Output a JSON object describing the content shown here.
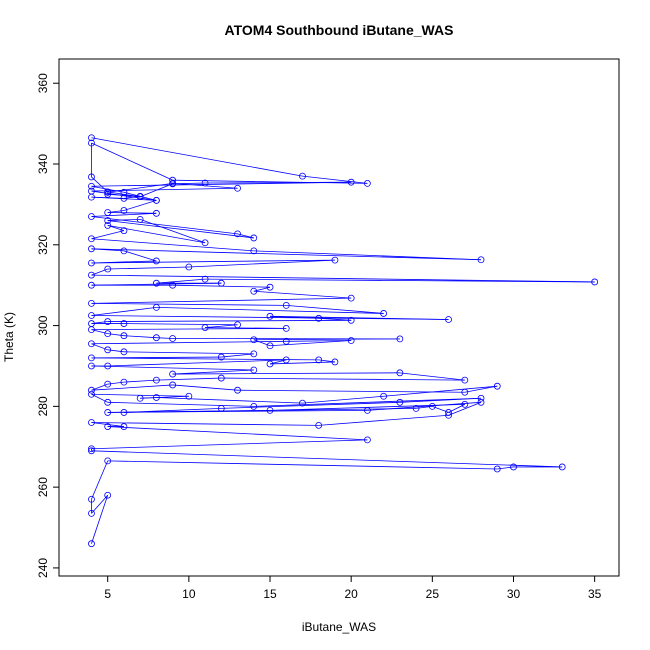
{
  "chart_data": {
    "type": "line",
    "title": "ATOM4 Southbound iButane_WAS",
    "xlabel": "iButane_WAS",
    "ylabel": "Theta (K)",
    "xlim": [
      2,
      36.5
    ],
    "ylim": [
      238,
      366
    ],
    "x_ticks": [
      5,
      10,
      15,
      20,
      25,
      30,
      35
    ],
    "y_ticks": [
      240,
      260,
      280,
      300,
      320,
      340,
      360
    ],
    "grid": false,
    "marker": "open-circle",
    "colors": {
      "series": "#0000ff",
      "axis": "#000000",
      "background": "#ffffff"
    },
    "series": [
      {
        "points": [
          [
            4,
            346.5
          ],
          [
            17,
            337
          ],
          [
            21,
            335.2
          ],
          [
            9,
            336
          ],
          [
            4,
            345.2
          ],
          [
            4,
            336.8
          ],
          [
            5,
            333.1
          ],
          [
            7,
            331.9
          ],
          [
            9,
            335.1
          ],
          [
            11,
            335.3
          ],
          [
            20,
            335.5
          ],
          [
            4,
            334.5
          ],
          [
            6,
            333
          ],
          [
            8,
            331
          ],
          [
            4,
            333.3
          ],
          [
            13,
            334
          ],
          [
            9,
            335.2
          ],
          [
            5,
            333
          ],
          [
            5,
            332.5
          ],
          [
            7,
            332
          ],
          [
            6,
            331.5
          ],
          [
            4,
            331.8
          ],
          [
            8,
            331
          ],
          [
            6,
            328.5
          ],
          [
            5,
            328
          ],
          [
            8,
            327.8
          ],
          [
            4,
            327
          ],
          [
            13,
            322.7
          ],
          [
            14,
            321.7
          ],
          [
            5,
            326
          ],
          [
            7,
            326.3
          ],
          [
            11,
            320.5
          ],
          [
            5,
            324.8
          ],
          [
            6,
            323.5
          ],
          [
            4,
            321.5
          ],
          [
            14,
            318.5
          ],
          [
            28,
            316.3
          ],
          [
            4,
            319
          ],
          [
            6,
            318.5
          ],
          [
            8,
            316
          ],
          [
            4,
            315.5
          ],
          [
            19,
            316.2
          ],
          [
            10,
            314.5
          ],
          [
            5,
            314
          ],
          [
            4,
            312.5
          ],
          [
            35,
            310.8
          ],
          [
            11,
            311.5
          ],
          [
            8,
            310.5
          ],
          [
            12,
            310.5
          ],
          [
            4,
            310
          ],
          [
            9,
            310
          ],
          [
            15,
            309.5
          ],
          [
            14,
            308.5
          ],
          [
            20,
            306.8
          ],
          [
            4,
            305.5
          ],
          [
            16,
            305
          ],
          [
            22,
            303
          ],
          [
            8,
            304.5
          ],
          [
            4,
            302.5
          ],
          [
            26,
            301.5
          ],
          [
            15,
            302.3
          ],
          [
            18,
            301.8
          ],
          [
            20,
            301.3
          ],
          [
            5,
            301
          ],
          [
            4,
            300.5
          ],
          [
            6,
            300.5
          ],
          [
            13,
            300.2
          ],
          [
            11,
            299.5
          ],
          [
            16,
            299.3
          ],
          [
            4,
            299
          ],
          [
            5,
            298
          ],
          [
            6,
            297.5
          ],
          [
            8,
            297
          ],
          [
            9,
            296.8
          ],
          [
            23,
            296.7
          ],
          [
            14,
            296.5
          ],
          [
            15,
            295
          ],
          [
            20,
            296.3
          ],
          [
            16,
            296.1
          ],
          [
            4,
            295.5
          ],
          [
            5,
            294
          ],
          [
            6,
            293.5
          ],
          [
            14,
            293
          ],
          [
            12,
            292.2
          ],
          [
            4,
            292
          ],
          [
            18,
            291.5
          ],
          [
            19,
            291
          ],
          [
            15,
            290.5
          ],
          [
            16,
            291.5
          ],
          [
            5,
            290
          ],
          [
            4,
            290
          ],
          [
            14,
            289
          ],
          [
            9,
            288
          ],
          [
            23,
            288.3
          ],
          [
            27,
            286.5
          ],
          [
            12,
            287
          ],
          [
            8,
            286.5
          ],
          [
            6,
            286
          ],
          [
            5,
            285.5
          ],
          [
            4,
            284
          ],
          [
            9,
            285.3
          ],
          [
            13,
            284
          ],
          [
            27,
            283.5
          ],
          [
            29,
            285
          ],
          [
            22,
            282.5
          ],
          [
            17,
            280.8
          ],
          [
            8,
            282.2
          ],
          [
            7,
            282
          ],
          [
            10,
            282.5
          ],
          [
            4,
            283
          ],
          [
            5,
            281
          ],
          [
            14,
            280
          ],
          [
            28,
            282
          ],
          [
            23,
            281
          ],
          [
            12,
            279.5
          ],
          [
            6,
            278.5
          ],
          [
            24,
            279.5
          ],
          [
            25,
            280
          ],
          [
            26,
            278.5
          ],
          [
            27,
            280.5
          ],
          [
            15,
            279
          ],
          [
            5,
            278.5
          ],
          [
            21,
            279
          ],
          [
            28,
            281
          ],
          [
            26,
            277.8
          ],
          [
            18,
            275.3
          ],
          [
            4,
            276
          ],
          [
            6,
            275
          ],
          [
            5,
            275
          ],
          [
            21,
            271.7
          ],
          [
            4,
            269.5
          ],
          [
            4,
            269
          ],
          [
            33,
            265
          ],
          [
            30,
            265
          ],
          [
            29,
            264.5
          ],
          [
            5,
            266.5
          ],
          [
            4,
            257
          ],
          [
            4,
            253.5
          ],
          [
            5,
            258
          ],
          [
            4,
            246
          ]
        ]
      }
    ]
  }
}
